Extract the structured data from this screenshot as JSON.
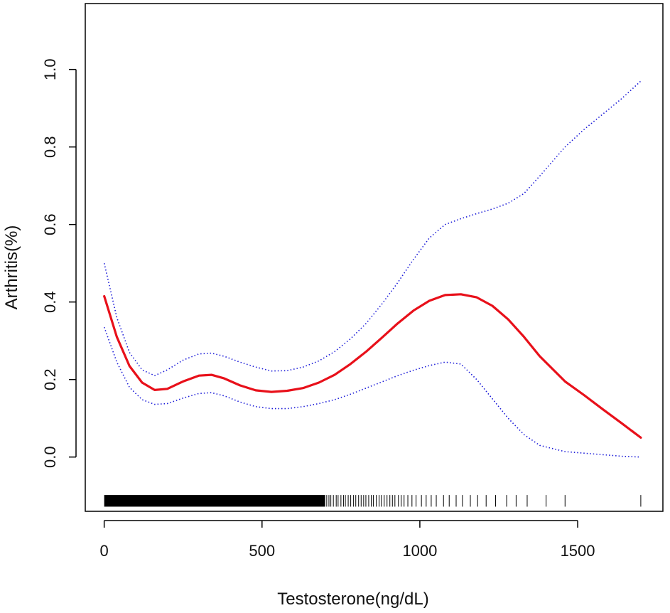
{
  "chart_data": {
    "type": "line",
    "title": "",
    "xlabel": "Testosterone(ng/dL)",
    "ylabel": "Arthritis(%)",
    "xlim": [
      -60,
      1770
    ],
    "ylim": [
      -0.14,
      1.17
    ],
    "x_ticks": [
      0,
      500,
      1000,
      1500
    ],
    "y_ticks": [
      0.0,
      0.2,
      0.4,
      0.6,
      0.8,
      1.0
    ],
    "x_tick_labels": [
      "0",
      "500",
      "1000",
      "1500"
    ],
    "y_tick_labels": [
      "0.0",
      "0.2",
      "0.4",
      "0.6",
      "0.8",
      "1.0"
    ],
    "grid": false,
    "legend": "none",
    "series": [
      {
        "role": "estimate",
        "color": "#e8101a",
        "style": "solid",
        "x": [
          0,
          40,
          80,
          120,
          160,
          200,
          250,
          300,
          340,
          380,
          430,
          480,
          530,
          580,
          630,
          680,
          730,
          780,
          830,
          880,
          930,
          980,
          1030,
          1080,
          1130,
          1180,
          1230,
          1280,
          1330,
          1380,
          1460,
          1520,
          1580,
          1640,
          1700
        ],
        "y": [
          0.415,
          0.31,
          0.235,
          0.192,
          0.173,
          0.176,
          0.195,
          0.21,
          0.212,
          0.203,
          0.185,
          0.172,
          0.168,
          0.171,
          0.178,
          0.192,
          0.212,
          0.24,
          0.272,
          0.308,
          0.345,
          0.378,
          0.403,
          0.418,
          0.42,
          0.412,
          0.39,
          0.355,
          0.31,
          0.26,
          0.195,
          0.16,
          0.123,
          0.087,
          0.05
        ]
      },
      {
        "role": "upper-ci",
        "color": "#1a1ad8",
        "style": "dotted",
        "x": [
          0,
          40,
          80,
          120,
          160,
          200,
          250,
          300,
          340,
          380,
          430,
          480,
          530,
          580,
          630,
          680,
          730,
          780,
          830,
          880,
          930,
          980,
          1030,
          1080,
          1130,
          1180,
          1230,
          1280,
          1330,
          1380,
          1460,
          1520,
          1580,
          1640,
          1700
        ],
        "y": [
          0.5,
          0.36,
          0.27,
          0.225,
          0.21,
          0.225,
          0.25,
          0.266,
          0.268,
          0.26,
          0.245,
          0.232,
          0.222,
          0.223,
          0.232,
          0.248,
          0.272,
          0.305,
          0.345,
          0.395,
          0.45,
          0.51,
          0.565,
          0.6,
          0.615,
          0.628,
          0.64,
          0.655,
          0.68,
          0.725,
          0.8,
          0.845,
          0.885,
          0.925,
          0.97
        ]
      },
      {
        "role": "lower-ci",
        "color": "#1a1ad8",
        "style": "dotted",
        "x": [
          0,
          40,
          80,
          120,
          160,
          200,
          250,
          300,
          340,
          380,
          430,
          480,
          530,
          580,
          630,
          680,
          730,
          780,
          830,
          880,
          930,
          980,
          1030,
          1080,
          1130,
          1180,
          1230,
          1280,
          1330,
          1380,
          1460,
          1520,
          1580,
          1640,
          1700
        ],
        "y": [
          0.335,
          0.245,
          0.18,
          0.148,
          0.136,
          0.138,
          0.152,
          0.164,
          0.166,
          0.158,
          0.142,
          0.13,
          0.125,
          0.125,
          0.13,
          0.138,
          0.148,
          0.162,
          0.178,
          0.194,
          0.21,
          0.224,
          0.236,
          0.245,
          0.24,
          0.2,
          0.15,
          0.1,
          0.058,
          0.03,
          0.014,
          0.01,
          0.006,
          0.002,
          0.0
        ]
      }
    ],
    "rug": {
      "y": -0.12,
      "dense_ranges": [
        [
          0,
          700
        ]
      ],
      "x": [
        705,
        712,
        718,
        726,
        735,
        741,
        750,
        758,
        764,
        773,
        781,
        790,
        797,
        806,
        814,
        822,
        829,
        838,
        846,
        853,
        862,
        871,
        878,
        887,
        896,
        905,
        913,
        921,
        932,
        941,
        950,
        962,
        975,
        988,
        1005,
        1020,
        1036,
        1052,
        1075,
        1093,
        1115,
        1135,
        1160,
        1183,
        1210,
        1240,
        1275,
        1305,
        1340,
        1400,
        1460,
        1700
      ]
    }
  }
}
